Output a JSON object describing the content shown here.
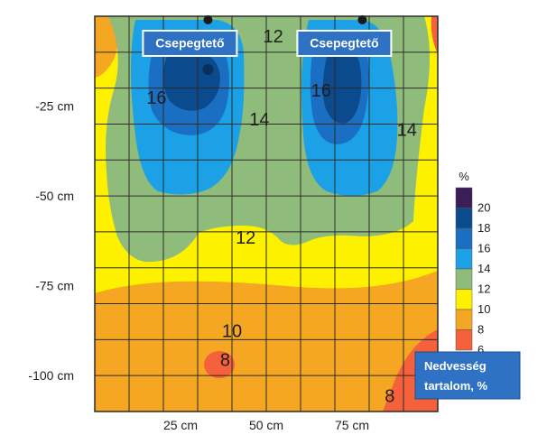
{
  "chart_data": {
    "type": "heatmap",
    "x_tick_labels": [
      "25 cm",
      "50 cm",
      "75 cm"
    ],
    "x_tick_values": [
      25,
      50,
      75
    ],
    "y_tick_labels": [
      "-25 cm",
      "-50 cm",
      "-75 cm",
      "-100 cm"
    ],
    "y_tick_values": [
      -25,
      -50,
      -75,
      -100
    ],
    "xlim": [
      0,
      100
    ],
    "ylim": [
      -110,
      0
    ],
    "grid": true,
    "drip_points_x": [
      33,
      78
    ],
    "markers": [
      {
        "label": "Csepegtető",
        "x": 33,
        "y": 0
      },
      {
        "label": "Csepegtető",
        "x": 78,
        "y": 0
      }
    ],
    "contour_labels": [
      {
        "text": "12",
        "x": 52,
        "y": -6
      },
      {
        "text": "16",
        "x": 18,
        "y": -23
      },
      {
        "text": "16",
        "x": 66,
        "y": -21
      },
      {
        "text": "14",
        "x": 48,
        "y": -29
      },
      {
        "text": "14",
        "x": 91,
        "y": -32
      },
      {
        "text": "12",
        "x": 44,
        "y": -62
      },
      {
        "text": "10",
        "x": 40,
        "y": -88
      },
      {
        "text": "8",
        "x": 38,
        "y": -96
      },
      {
        "text": "8",
        "x": 86,
        "y": -106
      }
    ],
    "colorbar": {
      "title": "%",
      "levels": [
        6,
        8,
        10,
        12,
        14,
        16,
        18,
        20
      ],
      "level_labels": [
        "6",
        "8",
        "10",
        "12",
        "14",
        "16",
        "18",
        "20"
      ],
      "colors": [
        "#f4613a",
        "#f5a623",
        "#fdf100",
        "#8fbc7a",
        "#1da1e6",
        "#1a6fc2",
        "#0b4a8c",
        "#3b1d57"
      ]
    },
    "legend_box": "Nedvesség tartalom, %",
    "legend_placement": "bottom-right"
  }
}
